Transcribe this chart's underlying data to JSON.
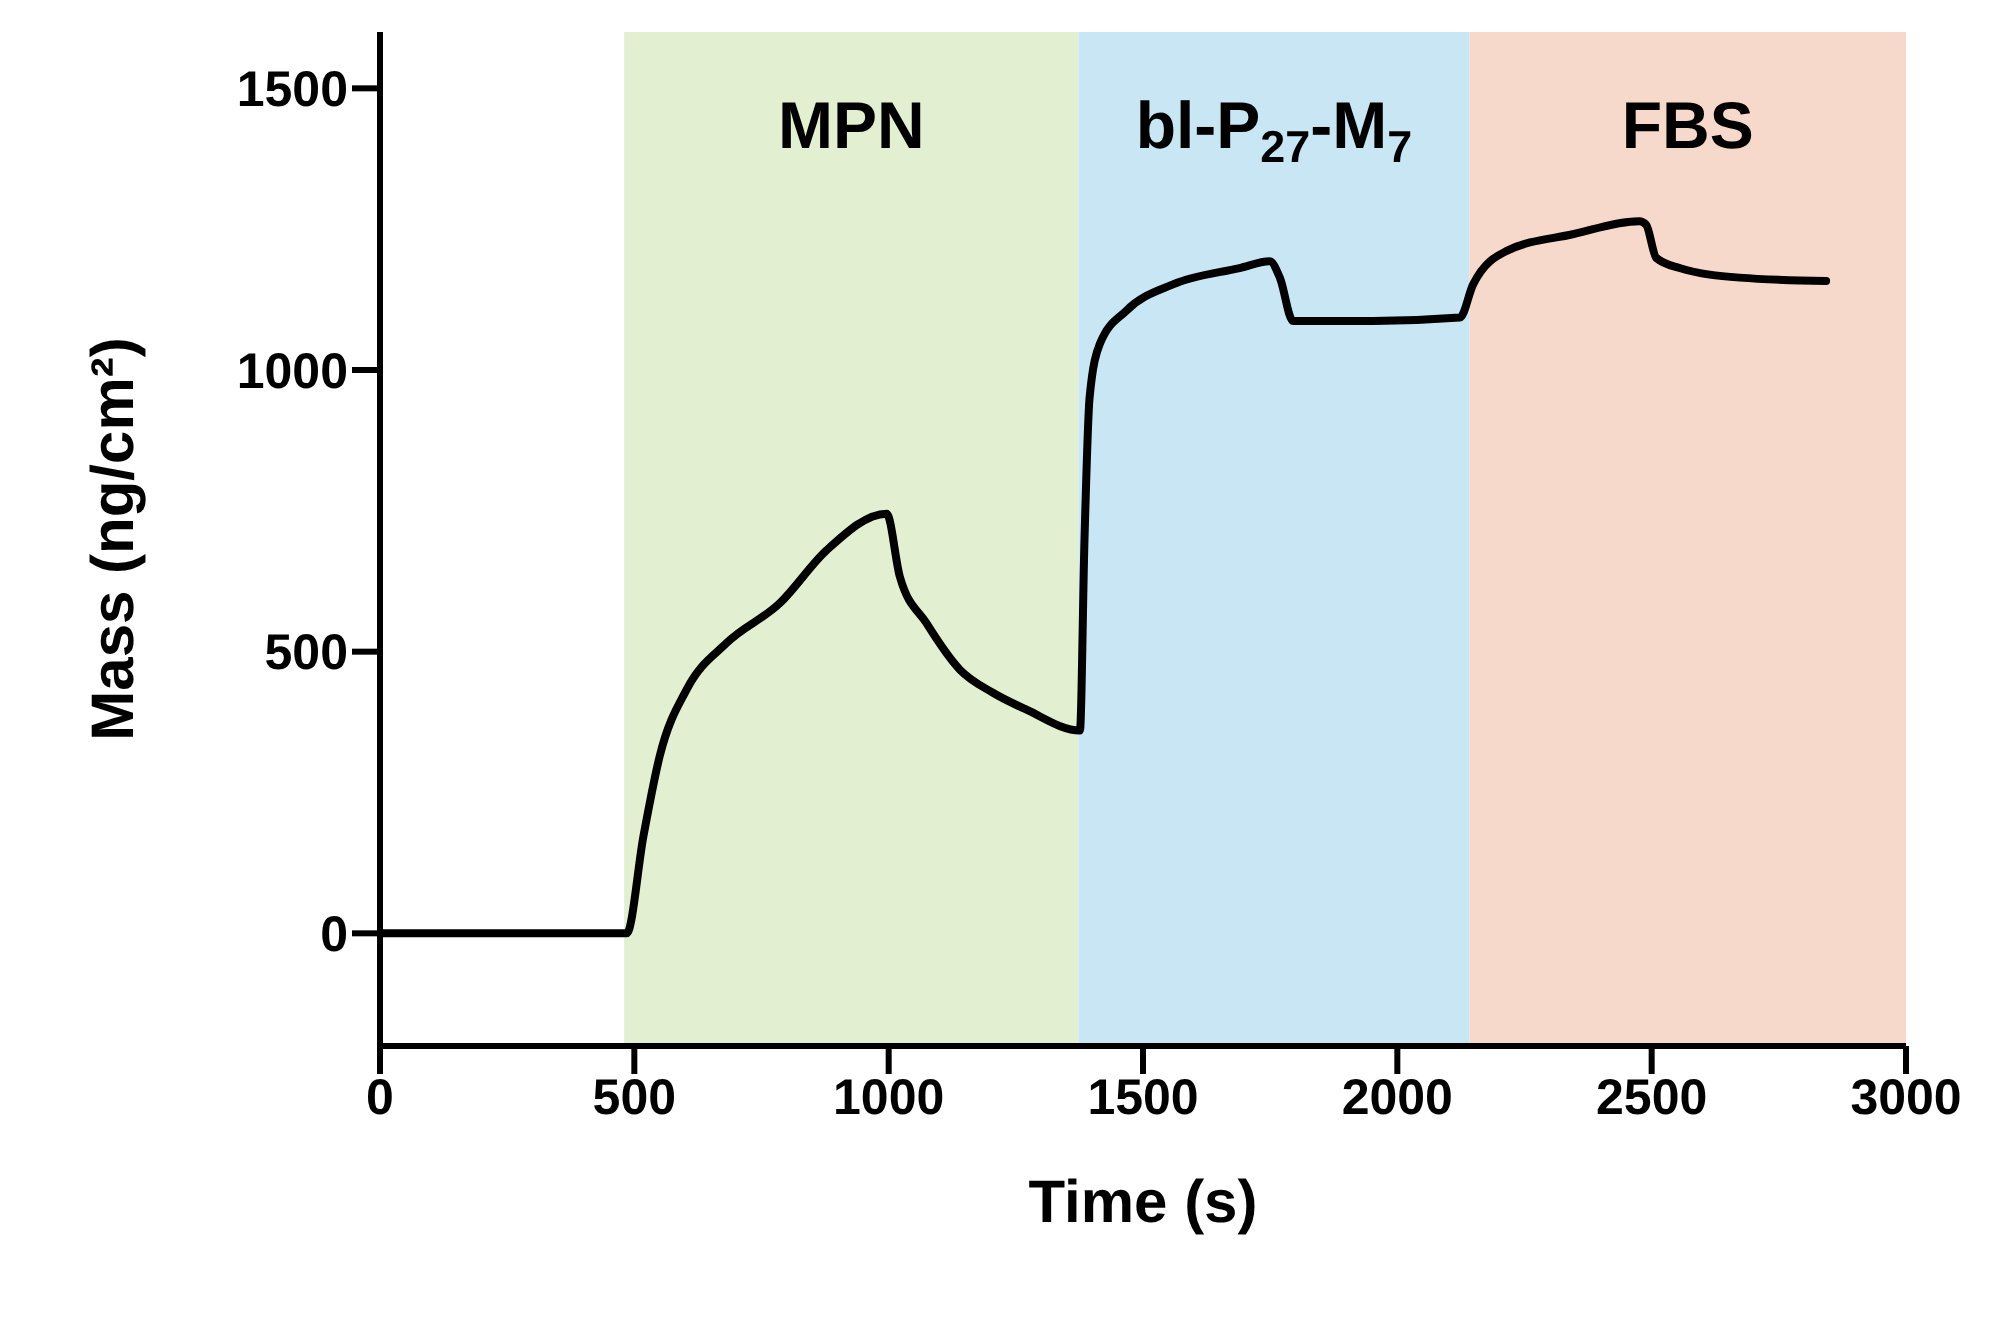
{
  "chart_data": {
    "type": "line",
    "xlabel": "Time (s)",
    "ylabel": "Mass (ng/cm²)",
    "x": [
      0,
      485,
      518,
      550,
      603,
      681,
      786,
      878,
      996,
      1022,
      1074,
      1140,
      1205,
      1271,
      1376,
      1385,
      1395,
      1415,
      1467,
      1559,
      1690,
      1749,
      1769,
      1795,
      1952,
      2123,
      2149,
      2214,
      2345,
      2476,
      2489,
      2509,
      2555,
      2673,
      2843
    ],
    "series": [
      {
        "color": "#000000",
        "values": [
          0,
          0,
          173,
          315,
          433,
          515,
          586,
          680,
          745,
          633,
          551,
          468,
          427,
          397,
          360,
          700,
          951,
          1046,
          1105,
          1152,
          1181,
          1193,
          1164,
          1087,
          1087,
          1093,
          1152,
          1211,
          1241,
          1264,
          1258,
          1199,
          1181,
          1164,
          1158
        ]
      }
    ],
    "xlim": [
      0,
      3000
    ],
    "xticks": [
      0,
      500,
      1000,
      1500,
      2000,
      2500,
      3000
    ],
    "ylim": [
      -200,
      1600
    ],
    "yticks": [
      0,
      500,
      1000,
      1500
    ],
    "bands": [
      {
        "axis": "x",
        "from": 480,
        "to": 1373,
        "label": "MPN",
        "color": "#e2efd0"
      },
      {
        "axis": "x",
        "from": 1373,
        "to": 2142,
        "label": "bl-P$_{27}$-M$_{7}$",
        "color": "#c8e6f4"
      },
      {
        "axis": "x",
        "from": 2142,
        "to": 3000,
        "label": "FBS",
        "color": "#f7d9cc"
      }
    ],
    "grid": false,
    "legend": false,
    "marker": "none",
    "line_style": "solid"
  }
}
